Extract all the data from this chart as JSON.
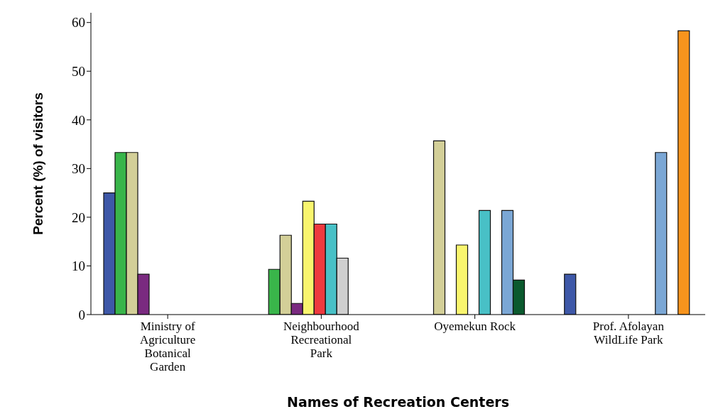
{
  "chart_data": {
    "type": "bar",
    "xlabel": "Names of Recreation Centers",
    "ylabel": "Percent (%) of visitors",
    "categories": [
      "Ministry of Agriculture Botanical Garden",
      "Neighbourhood Recreational Park",
      "Oyemekun Rock",
      "Prof. Afolayan WildLife Park"
    ],
    "series": [
      {
        "color": "#3e58a8",
        "values": [
          25,
          null,
          null,
          8.3
        ]
      },
      {
        "color": "#39b54a",
        "values": [
          33.3,
          9.3,
          null,
          null
        ]
      },
      {
        "color": "#d3cf98",
        "values": [
          33.3,
          16.3,
          35.7,
          null
        ]
      },
      {
        "color": "#7a2a80",
        "values": [
          8.3,
          2.3,
          null,
          null
        ]
      },
      {
        "color": "#f9f56e",
        "values": [
          null,
          23.3,
          14.3,
          null
        ]
      },
      {
        "color": "#ee3a3f",
        "values": [
          null,
          18.6,
          null,
          null
        ]
      },
      {
        "color": "#48c0c6",
        "values": [
          null,
          18.6,
          21.4,
          null
        ]
      },
      {
        "color": "#cfcfcf",
        "values": [
          null,
          11.6,
          null,
          null
        ]
      },
      {
        "color": "#7ba7d5",
        "values": [
          null,
          null,
          21.4,
          33.3
        ]
      },
      {
        "color": "#0b5a2e",
        "values": [
          null,
          null,
          7.1,
          null
        ]
      },
      {
        "color": "#f7941d",
        "values": [
          null,
          null,
          null,
          58.3
        ]
      }
    ],
    "ylim": [
      0,
      62
    ],
    "yticks": [
      0,
      10,
      20,
      30,
      40,
      50,
      60
    ],
    "grid": false,
    "legend": false
  }
}
